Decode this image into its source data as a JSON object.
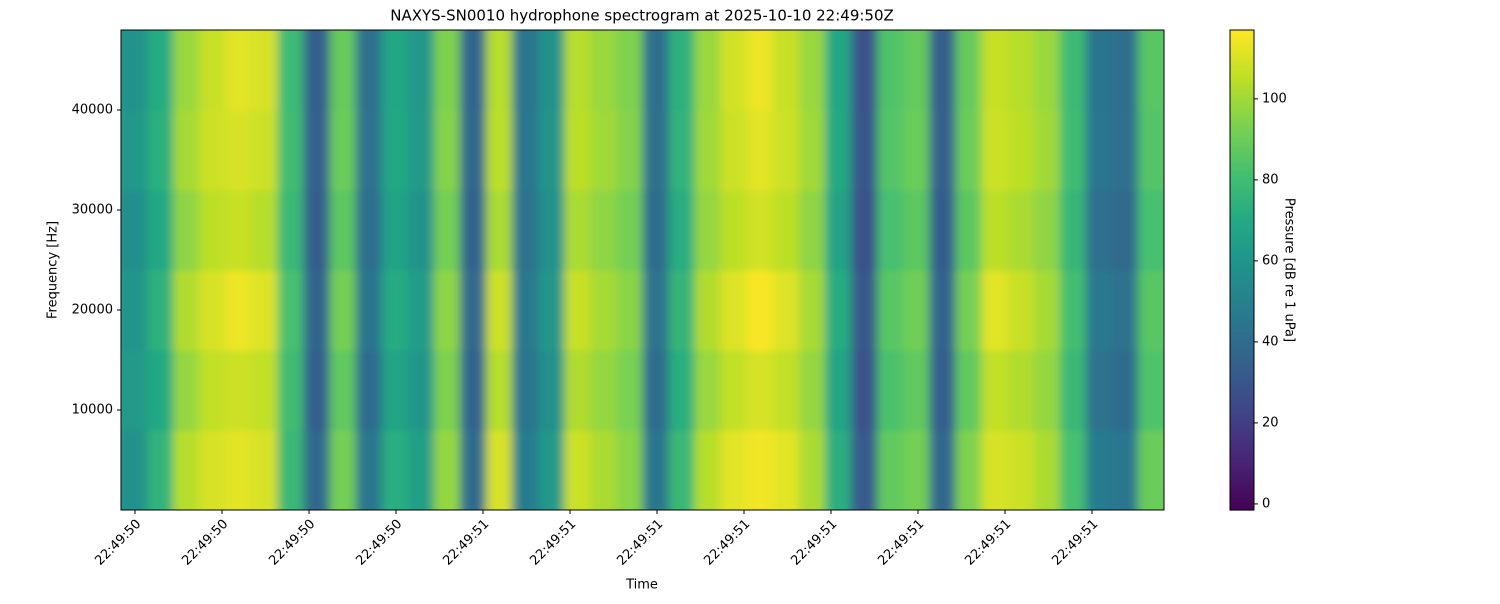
{
  "chart_data": {
    "type": "heatmap",
    "title": "NAXYS-SN0010 hydrophone spectrogram at 2025-10-10 22:49:50Z",
    "x_label": "Time",
    "y_label": "Frequency [Hz]",
    "colorbar_label": "Pressure [dB re 1 uPa]",
    "colormap": "viridis",
    "xticks": [
      "22:49:50",
      "22:49:50",
      "22:49:50",
      "22:49:50",
      "22:49:51",
      "22:49:51",
      "22:49:51",
      "22:49:51",
      "22:49:51",
      "22:49:51",
      "22:49:51",
      "22:49:51"
    ],
    "ylim": [
      0,
      48000
    ],
    "yticks": [
      10000,
      20000,
      30000,
      40000
    ],
    "clim": [
      -1.5,
      117
    ],
    "cticks": [
      0,
      20,
      40,
      60,
      80,
      100
    ],
    "z": [
      [
        58,
        75,
        104,
        110,
        112,
        110,
        78,
        38,
        92,
        45,
        72,
        65,
        98,
        40,
        110,
        48,
        62,
        108,
        102,
        96,
        45,
        78,
        104,
        112,
        115,
        112,
        102,
        72,
        32,
        88,
        92,
        38,
        94,
        110,
        108,
        102,
        82,
        48,
        45,
        90
      ],
      [
        62,
        70,
        98,
        106,
        108,
        106,
        80,
        34,
        88,
        40,
        68,
        60,
        94,
        36,
        104,
        44,
        58,
        103,
        98,
        93,
        40,
        73,
        99,
        106,
        110,
        106,
        98,
        68,
        29,
        83,
        88,
        34,
        88,
        106,
        103,
        98,
        78,
        43,
        40,
        84
      ],
      [
        60,
        74,
        103,
        110,
        114,
        111,
        82,
        36,
        92,
        44,
        71,
        63,
        97,
        39,
        108,
        46,
        61,
        107,
        101,
        96,
        43,
        76,
        103,
        111,
        116,
        111,
        101,
        71,
        31,
        86,
        91,
        36,
        92,
        112,
        107,
        101,
        81,
        46,
        43,
        86
      ],
      [
        57,
        70,
        97,
        105,
        107,
        104,
        78,
        33,
        87,
        41,
        67,
        59,
        92,
        36,
        102,
        43,
        58,
        102,
        97,
        92,
        40,
        72,
        98,
        105,
        109,
        105,
        97,
        67,
        28,
        82,
        87,
        33,
        87,
        105,
        102,
        97,
        77,
        42,
        39,
        82
      ],
      [
        61,
        73,
        101,
        108,
        110,
        108,
        80,
        35,
        90,
        43,
        70,
        62,
        95,
        38,
        105,
        45,
        60,
        105,
        100,
        95,
        42,
        75,
        100,
        108,
        112,
        108,
        100,
        70,
        30,
        85,
        90,
        35,
        90,
        108,
        105,
        100,
        80,
        45,
        42,
        85
      ],
      [
        59,
        71,
        99,
        107,
        112,
        110,
        79,
        34,
        89,
        42,
        69,
        61,
        94,
        37,
        104,
        44,
        59,
        104,
        99,
        94,
        41,
        74,
        99,
        109,
        114,
        107,
        99,
        69,
        29,
        84,
        89,
        34,
        89,
        107,
        104,
        99,
        79,
        44,
        41,
        86
      ]
    ]
  }
}
